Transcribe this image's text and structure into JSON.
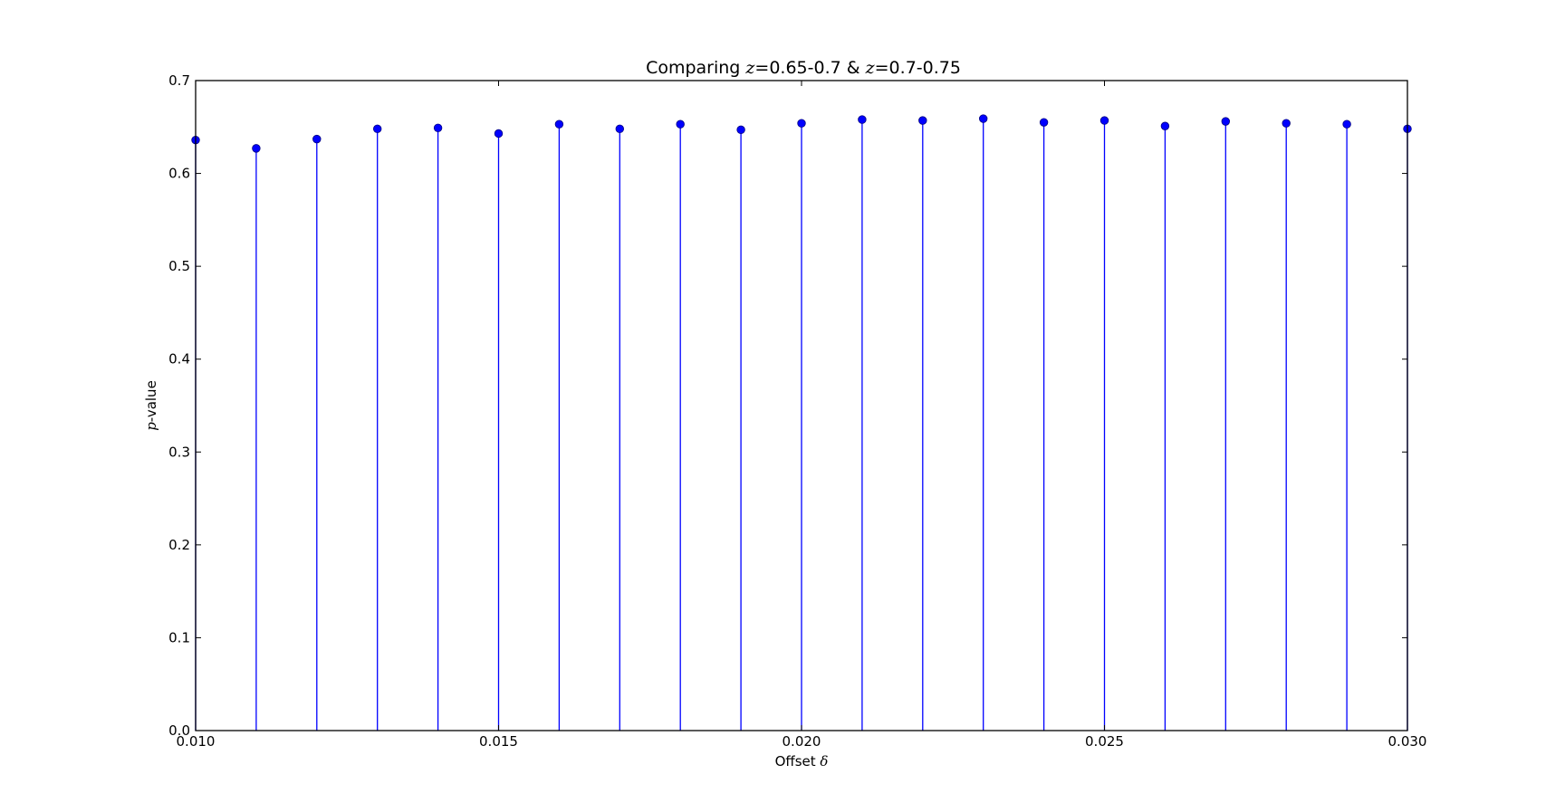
{
  "chart_data": {
    "type": "stem",
    "title_prefix": "Comparing ",
    "title_z1": "z",
    "title_mid1": "=0.65-0.7 & ",
    "title_z2": "z",
    "title_mid2": "=0.7-0.75",
    "xlabel_prefix": "Offset ",
    "xlabel_symbol": "δ",
    "ylabel_symbol": "p",
    "ylabel_suffix": "-value",
    "xlim": [
      0.01,
      0.03
    ],
    "ylim": [
      0.0,
      0.7
    ],
    "xticks": [
      "0.010",
      "0.015",
      "0.020",
      "0.025",
      "0.030"
    ],
    "yticks": [
      "0.0",
      "0.1",
      "0.2",
      "0.3",
      "0.4",
      "0.5",
      "0.6",
      "0.7"
    ],
    "x": [
      0.01,
      0.011,
      0.012,
      0.013,
      0.014,
      0.015,
      0.016,
      0.017,
      0.018,
      0.019,
      0.02,
      0.021,
      0.022,
      0.023,
      0.024,
      0.025,
      0.026,
      0.027,
      0.028,
      0.029,
      0.03
    ],
    "y": [
      0.636,
      0.627,
      0.637,
      0.648,
      0.649,
      0.643,
      0.653,
      0.648,
      0.653,
      0.647,
      0.654,
      0.658,
      0.657,
      0.659,
      0.655,
      0.657,
      0.651,
      0.656,
      0.654,
      0.653,
      0.648
    ],
    "line_color": "#0000ff",
    "marker_color": "#0000ff",
    "marker_edge": "#00007f",
    "grid": false
  }
}
